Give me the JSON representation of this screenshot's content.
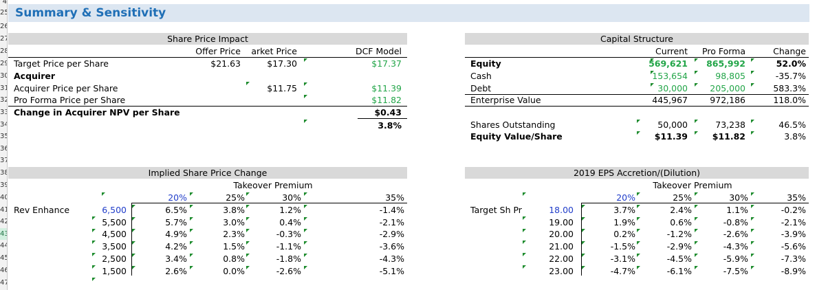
{
  "row_numbers": [
    "4",
    "25",
    "26",
    "27",
    "28",
    "29",
    "30",
    "31",
    "32",
    "33",
    "34",
    "35",
    "36",
    "37",
    "38",
    "39",
    "40",
    "41",
    "42",
    "43",
    "44",
    "45",
    "46",
    "47"
  ],
  "title": "Summary & Sensitivity",
  "share_price_impact": {
    "header": "Share Price Impact",
    "col_offer": "Offer Price",
    "col_market": "arket Price",
    "col_dcf": "DCF Model",
    "rows": {
      "target_label": "Target Price per Share",
      "target_offer": "$21.63",
      "target_market": "$17.30",
      "target_dcf": "$17.37",
      "acquirer_label": "Acquirer",
      "acq_price_label": "Acquirer Price per Share",
      "acq_price_market": "$11.75",
      "acq_price_dcf": "$11.39",
      "proforma_label": "Pro Forma Price per Share",
      "proforma_dcf": "$11.82",
      "change_label": "Change in Acquirer NPV per Share",
      "change_value": "$0.43",
      "change_pct": "3.8%"
    }
  },
  "capital_structure": {
    "header": "Capital Structure",
    "col_current": "Current",
    "col_proforma": "Pro Forma",
    "col_change": "Change",
    "rows": [
      {
        "label": "Equity",
        "current": "569,621",
        "proforma": "865,992",
        "change": "52.0%"
      },
      {
        "label": "Cash",
        "current": "153,654",
        "proforma": "98,805",
        "change": "-35.7%"
      },
      {
        "label": "Debt",
        "current": "30,000",
        "proforma": "205,000",
        "change": "583.3%"
      },
      {
        "label": "Enterprise Value",
        "current": "445,967",
        "proforma": "972,186",
        "change": "118.0%"
      },
      {
        "label": "Shares Outstanding",
        "current": "50,000",
        "proforma": "73,238",
        "change": "46.5%"
      },
      {
        "label": "Equity Value/Share",
        "current": "$11.39",
        "proforma": "$11.82",
        "change": "3.8%"
      }
    ]
  },
  "implied_share_price": {
    "header": "Implied Share Price Change",
    "premium_label": "Takeover Premium",
    "row_label": "Rev Enhance",
    "col_headers": [
      "20%",
      "25%",
      "30%",
      "35%"
    ],
    "row_headers": [
      "6,500",
      "5,500",
      "4,500",
      "3,500",
      "2,500",
      "1,500"
    ],
    "cells": [
      [
        "6.5%",
        "3.8%",
        "1.2%",
        "-1.4%"
      ],
      [
        "5.7%",
        "3.0%",
        "0.4%",
        "-2.1%"
      ],
      [
        "4.9%",
        "2.3%",
        "-0.3%",
        "-2.9%"
      ],
      [
        "4.2%",
        "1.5%",
        "-1.1%",
        "-3.6%"
      ],
      [
        "3.4%",
        "0.8%",
        "-1.8%",
        "-4.3%"
      ],
      [
        "2.6%",
        "0.0%",
        "-2.6%",
        "-5.1%"
      ]
    ]
  },
  "eps_accretion": {
    "header": "2019 EPS Accretion/(Dilution)",
    "premium_label": "Takeover Premium",
    "row_label": "Target Sh Pr",
    "col_headers": [
      "20%",
      "25%",
      "30%",
      "35%"
    ],
    "row_headers": [
      "18.00",
      "19.00",
      "20.00",
      "21.00",
      "22.00",
      "23.00"
    ],
    "cells": [
      [
        "3.7%",
        "2.4%",
        "1.1%",
        "-0.2%"
      ],
      [
        "1.9%",
        "0.6%",
        "-0.8%",
        "-2.1%"
      ],
      [
        "0.2%",
        "-1.2%",
        "-2.6%",
        "-3.9%"
      ],
      [
        "-1.5%",
        "-2.9%",
        "-4.3%",
        "-5.6%"
      ],
      [
        "-3.1%",
        "-4.5%",
        "-5.9%",
        "-7.3%"
      ],
      [
        "-4.7%",
        "-6.1%",
        "-7.5%",
        "-8.9%"
      ]
    ]
  },
  "colors": {
    "title": "#1f6fb6",
    "title_band": "#dce6f1",
    "section_band": "#d9d9d9",
    "link_green": "#22a548",
    "input_blue": "#1f3cc9"
  }
}
